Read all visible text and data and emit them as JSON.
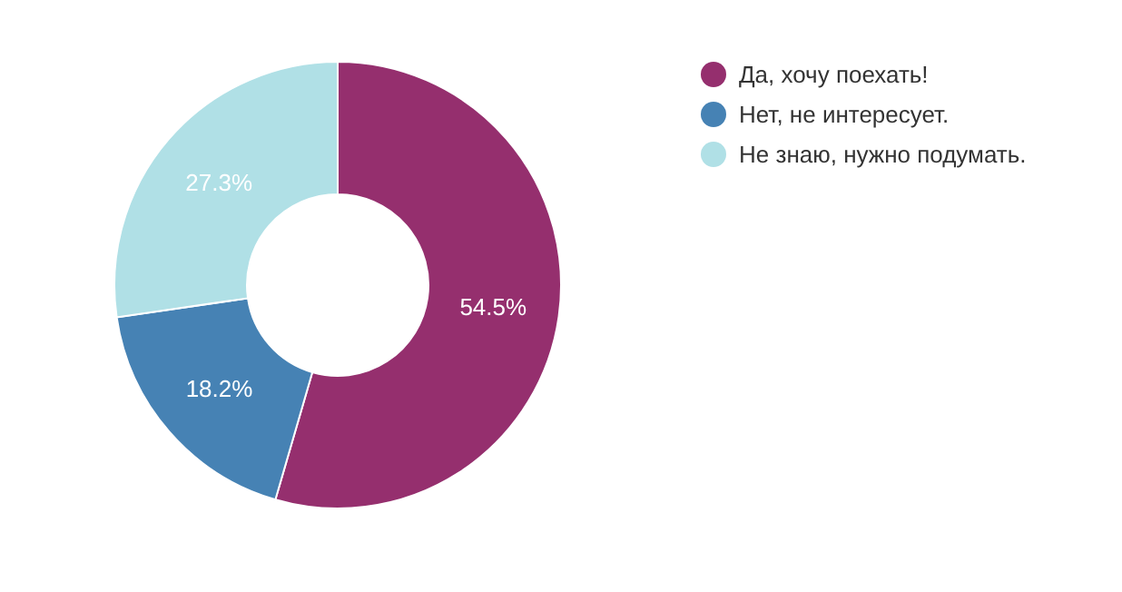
{
  "chart_data": {
    "type": "donut",
    "categories": [
      "Да, хочу поехать!",
      "Нет, не интересует.",
      "Не знаю, нужно подумать."
    ],
    "values": [
      54.5,
      18.2,
      27.3
    ],
    "colors": [
      "#952f6e",
      "#4682b4",
      "#b0e0e6"
    ],
    "value_labels": [
      "54.5%",
      "18.2%",
      "27.3%"
    ],
    "legend": "right"
  }
}
